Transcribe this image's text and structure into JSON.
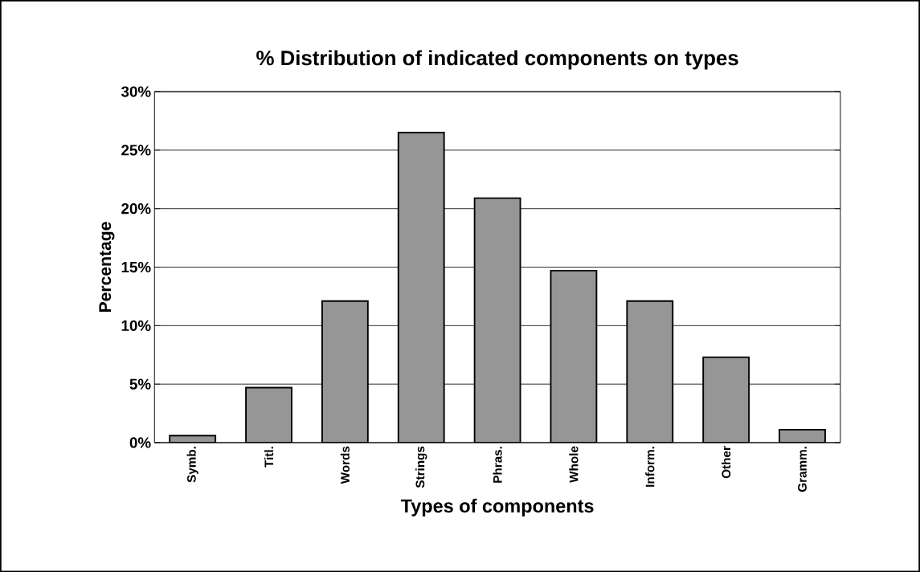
{
  "chart_data": {
    "type": "bar",
    "title": "% Distribution of indicated components on types",
    "xlabel": "Types of components",
    "ylabel": "Percentage",
    "categories": [
      "Symb.",
      "Titl.",
      "Words",
      "Strings",
      "Phras.",
      "Whole",
      "Inform.",
      "Other",
      "Gramm."
    ],
    "values": [
      0.6,
      4.7,
      12.1,
      26.5,
      20.9,
      14.7,
      12.1,
      7.3,
      1.1
    ],
    "color": "#969696",
    "ylim": [
      0,
      30
    ],
    "yticks": [
      {
        "value": 0,
        "label": "0%"
      },
      {
        "value": 5,
        "label": "5%"
      },
      {
        "value": 10,
        "label": "10%"
      },
      {
        "value": 15,
        "label": "15%"
      },
      {
        "value": 20,
        "label": "20%"
      },
      {
        "value": 25,
        "label": "25%"
      },
      {
        "value": 30,
        "label": "30%"
      }
    ],
    "grid": "y"
  }
}
